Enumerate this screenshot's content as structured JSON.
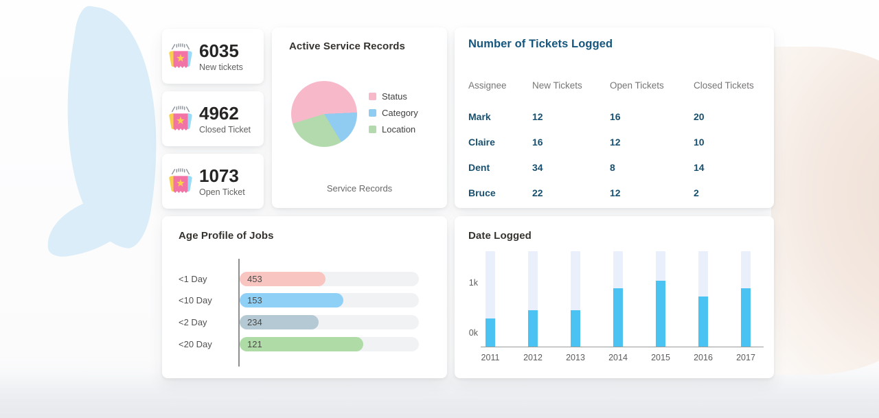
{
  "stats": {
    "cards": [
      {
        "value": "6035",
        "label": "New tickets"
      },
      {
        "value": "4962",
        "label": "Closed Ticket"
      },
      {
        "value": "1073",
        "label": "Open Ticket"
      }
    ]
  },
  "service_records": {
    "title": "Active Service Records",
    "footer": "Service Records",
    "legend": [
      "Status",
      "Category",
      "Location"
    ]
  },
  "tickets_table": {
    "title": "Number of Tickets Logged",
    "columns": [
      "Assignee",
      "New Tickets",
      "Open Tickets",
      "Closed Tickets"
    ],
    "rows": [
      [
        "Mark",
        "12",
        "16",
        "20"
      ],
      [
        "Claire",
        "16",
        "12",
        "10"
      ],
      [
        "Dent",
        "34",
        "8",
        "14"
      ],
      [
        "Bruce",
        "22",
        "12",
        "2"
      ]
    ]
  },
  "age_profile": {
    "title": "Age Profile of Jobs"
  },
  "date_logged": {
    "title": "Date Logged",
    "y_ticks": {
      "top": "1k",
      "bottom": "0k"
    }
  },
  "colors": {
    "pie_pink": "#F7B8C9",
    "pie_blue": "#90CBF1",
    "pie_green": "#B3DAAD",
    "bar_fill_blue": "#4AC3F2",
    "bar_track_blue": "#E9EFFB",
    "table_title_teal": "#14567E",
    "table_cell_teal": "#174F6F",
    "leaf_blue": "#DAEDF8",
    "peach": "#EEDFD5"
  },
  "chart_data": [
    {
      "id": "service-records-pie",
      "type": "pie",
      "title": "Active Service Records",
      "labels": [
        "Status",
        "Category",
        "Location"
      ],
      "values_pct": [
        54,
        17,
        29
      ],
      "colors": [
        "#F7B8C9",
        "#90CBF1",
        "#B3DAAD"
      ],
      "legend_position": "right",
      "start_angle_deg": -107,
      "footer_label": "Service Records"
    },
    {
      "id": "age-profile-bars",
      "type": "bar",
      "orientation": "horizontal",
      "title": "Age Profile of Jobs",
      "categories": [
        "<1 Day",
        "<10 Day",
        "<2 Day",
        "<20 Day"
      ],
      "values": [
        453,
        153,
        234,
        121
      ],
      "bar_length_pct": [
        48,
        58,
        44,
        69
      ],
      "bar_colors": [
        "#F8C5C0",
        "#8FD0F7",
        "#B4C9D3",
        "#AEDBA6"
      ],
      "track_color": "#F1F2F4",
      "grid": false,
      "value_labels": "inside-left"
    },
    {
      "id": "date-logged-bars",
      "type": "bar",
      "orientation": "vertical",
      "title": "Date Logged",
      "categories": [
        "2011",
        "2012",
        "2013",
        "2014",
        "2015",
        "2016",
        "2017"
      ],
      "values_k": [
        0.3,
        0.47,
        0.47,
        0.9,
        1.05,
        0.74,
        0.9
      ],
      "ylabel": "",
      "xlabel": "",
      "y_tick_labels": [
        "0k",
        "1k"
      ],
      "ylim_k": [
        0,
        1.9
      ],
      "bar_color": "#4AC3F2",
      "track_color": "#E9EFFB",
      "grid": false
    }
  ]
}
